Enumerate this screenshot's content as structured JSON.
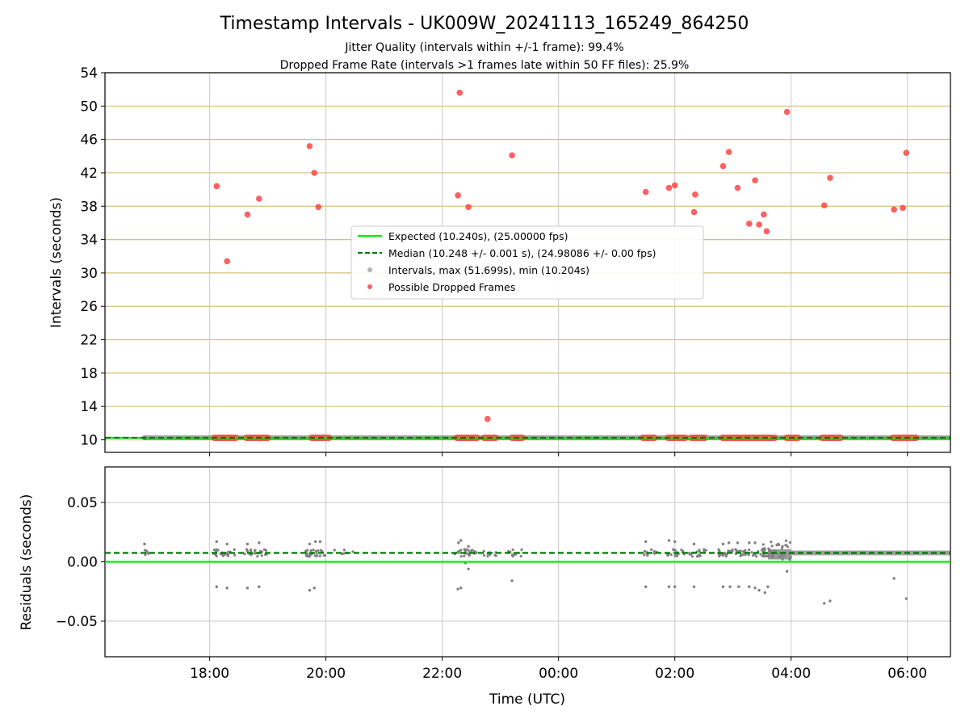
{
  "figure": {
    "title": "Timestamp Intervals - UK009W_20241113_165249_864250",
    "subtitle_1": "Jitter Quality (intervals within +/-1 frame): 99.4%",
    "subtitle_2": "Dropped Frame Rate (intervals >1 frames late within 50 FF files): 25.9%"
  },
  "colors": {
    "expected": "#00ee00",
    "median": "#007700",
    "intervals": "#808080",
    "dropped": "#ff4444",
    "hgrid": "#d4c27a",
    "vgrid": "#c8c8c8"
  },
  "chart_data": [
    {
      "type": "scatter",
      "ylabel": "Intervals (seconds)",
      "x_unit": "hours since 00:00 UTC 2024-11-13",
      "xlim": [
        16.2,
        30.74
      ],
      "ylim": [
        8.5,
        54
      ],
      "grid": true,
      "legend_placement": "center",
      "legend": [
        "Expected (10.240s), (25.00000 fps)",
        "Median (10.248 +/- 0.001 s), (24.98086 +/- 0.00 fps)",
        "Intervals, max (51.699s), min (10.204s)",
        "Possible Dropped Frames"
      ],
      "yticks": [
        10,
        14,
        18,
        22,
        26,
        30,
        34,
        38,
        42,
        46,
        50,
        54
      ],
      "ytick_labels": [
        "10",
        "14",
        "18",
        "22",
        "26",
        "30",
        "34",
        "38",
        "42",
        "46",
        "50",
        "54"
      ],
      "expected": 10.24,
      "median": 10.248,
      "intervals_range": [
        16.88,
        30.74
      ],
      "dropped_points": [
        {
          "x": 18.12,
          "y": 40.4
        },
        {
          "x": 18.3,
          "y": 31.4
        },
        {
          "x": 18.65,
          "y": 37.0
        },
        {
          "x": 18.85,
          "y": 38.9
        },
        {
          "x": 19.72,
          "y": 45.2
        },
        {
          "x": 19.8,
          "y": 42.0
        },
        {
          "x": 19.87,
          "y": 37.9
        },
        {
          "x": 22.27,
          "y": 39.3
        },
        {
          "x": 22.3,
          "y": 51.6
        },
        {
          "x": 22.45,
          "y": 37.9
        },
        {
          "x": 22.78,
          "y": 12.5
        },
        {
          "x": 23.2,
          "y": 44.1
        },
        {
          "x": 25.5,
          "y": 39.7
        },
        {
          "x": 25.9,
          "y": 40.2
        },
        {
          "x": 26.0,
          "y": 40.5
        },
        {
          "x": 26.33,
          "y": 37.3
        },
        {
          "x": 26.35,
          "y": 39.4
        },
        {
          "x": 26.83,
          "y": 42.8
        },
        {
          "x": 26.93,
          "y": 44.5
        },
        {
          "x": 27.08,
          "y": 40.2
        },
        {
          "x": 27.28,
          "y": 35.9
        },
        {
          "x": 27.38,
          "y": 41.1
        },
        {
          "x": 27.45,
          "y": 35.8
        },
        {
          "x": 27.53,
          "y": 37.0
        },
        {
          "x": 27.58,
          "y": 35.0
        },
        {
          "x": 27.93,
          "y": 49.3
        },
        {
          "x": 28.57,
          "y": 38.1
        },
        {
          "x": 28.67,
          "y": 41.4
        },
        {
          "x": 29.77,
          "y": 37.6
        },
        {
          "x": 29.92,
          "y": 37.8
        },
        {
          "x": 29.98,
          "y": 44.4
        }
      ],
      "baseline_dropped_runs": [
        [
          18.08,
          18.45
        ],
        [
          18.63,
          19.0
        ],
        [
          19.75,
          20.05
        ],
        [
          22.25,
          22.6
        ],
        [
          22.72,
          22.92
        ],
        [
          23.2,
          23.38
        ],
        [
          25.45,
          25.65
        ],
        [
          25.88,
          26.18
        ],
        [
          26.28,
          26.52
        ],
        [
          26.82,
          27.72
        ],
        [
          27.92,
          28.12
        ],
        [
          28.53,
          28.85
        ],
        [
          29.75,
          30.15
        ]
      ]
    },
    {
      "type": "scatter",
      "xlabel": "Time (UTC)",
      "ylabel": "Residuals (seconds)",
      "xlim": [
        16.2,
        30.74
      ],
      "ylim": [
        -0.08,
        0.08
      ],
      "grid": true,
      "yticks": [
        -0.05,
        0.0,
        0.05
      ],
      "ytick_labels": [
        "−0.05",
        "0.00",
        "0.05"
      ],
      "xticks": [
        18,
        20,
        22,
        24,
        26,
        28,
        30
      ],
      "xtick_labels": [
        "18:00",
        "20:00",
        "22:00",
        "00:00",
        "02:00",
        "04:00",
        "06:00"
      ],
      "expected": 0.0,
      "median": 0.0075,
      "low_points": [
        {
          "x": 18.12,
          "y": -0.021
        },
        {
          "x": 18.3,
          "y": -0.022
        },
        {
          "x": 18.65,
          "y": -0.022
        },
        {
          "x": 18.85,
          "y": -0.021
        },
        {
          "x": 19.72,
          "y": -0.024
        },
        {
          "x": 19.8,
          "y": -0.022
        },
        {
          "x": 22.27,
          "y": -0.023
        },
        {
          "x": 22.32,
          "y": -0.022
        },
        {
          "x": 22.45,
          "y": -0.006
        },
        {
          "x": 22.4,
          "y": -0.001
        },
        {
          "x": 23.2,
          "y": -0.016
        },
        {
          "x": 25.5,
          "y": -0.021
        },
        {
          "x": 25.9,
          "y": -0.021
        },
        {
          "x": 26.0,
          "y": -0.021
        },
        {
          "x": 26.33,
          "y": -0.021
        },
        {
          "x": 26.83,
          "y": -0.021
        },
        {
          "x": 26.95,
          "y": -0.021
        },
        {
          "x": 27.1,
          "y": -0.021
        },
        {
          "x": 27.28,
          "y": -0.021
        },
        {
          "x": 27.38,
          "y": -0.022
        },
        {
          "x": 27.45,
          "y": -0.024
        },
        {
          "x": 27.55,
          "y": -0.026
        },
        {
          "x": 27.6,
          "y": -0.021
        },
        {
          "x": 27.93,
          "y": -0.008
        },
        {
          "x": 28.57,
          "y": -0.035
        },
        {
          "x": 28.67,
          "y": -0.033
        },
        {
          "x": 29.77,
          "y": -0.014
        },
        {
          "x": 29.98,
          "y": -0.031
        }
      ],
      "high_points": [
        {
          "x": 16.88,
          "y": 0.015
        },
        {
          "x": 18.12,
          "y": 0.017
        },
        {
          "x": 18.3,
          "y": 0.015
        },
        {
          "x": 18.65,
          "y": 0.015
        },
        {
          "x": 18.85,
          "y": 0.016
        },
        {
          "x": 19.72,
          "y": 0.015
        },
        {
          "x": 19.82,
          "y": 0.017
        },
        {
          "x": 19.9,
          "y": 0.017
        },
        {
          "x": 22.28,
          "y": 0.016
        },
        {
          "x": 22.32,
          "y": 0.018
        },
        {
          "x": 22.45,
          "y": 0.013
        },
        {
          "x": 25.5,
          "y": 0.017
        },
        {
          "x": 25.9,
          "y": 0.018
        },
        {
          "x": 26.0,
          "y": 0.017
        },
        {
          "x": 26.33,
          "y": 0.015
        },
        {
          "x": 26.83,
          "y": 0.015
        },
        {
          "x": 26.93,
          "y": 0.016
        },
        {
          "x": 27.08,
          "y": 0.016
        },
        {
          "x": 27.28,
          "y": 0.016
        },
        {
          "x": 27.38,
          "y": 0.016
        }
      ]
    }
  ]
}
